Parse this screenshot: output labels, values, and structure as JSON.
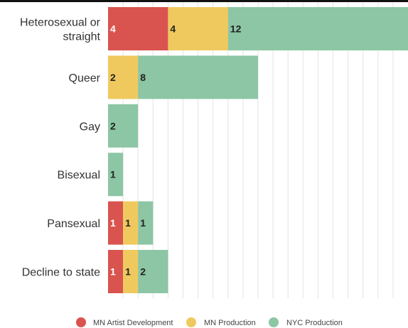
{
  "chart_data": {
    "type": "bar",
    "orientation": "horizontal",
    "stacked": true,
    "categories": [
      [
        "Heterosexual or",
        "straight"
      ],
      [
        "Queer"
      ],
      [
        "Gay"
      ],
      [
        "Bisexual"
      ],
      [
        "Pansexual"
      ],
      [
        "Decline to state"
      ]
    ],
    "series": [
      {
        "name": "MN Artist Development",
        "color": "#d9534f",
        "label_color": "#ffffff",
        "values": [
          4,
          0,
          0,
          0,
          1,
          1
        ]
      },
      {
        "name": "MN Production",
        "color": "#f0c95e",
        "label_color": "#222222",
        "values": [
          4,
          2,
          0,
          0,
          1,
          1
        ]
      },
      {
        "name": "NYC Production",
        "color": "#8cc6a4",
        "label_color": "#222222",
        "values": [
          12,
          8,
          2,
          1,
          1,
          2
        ]
      }
    ],
    "xlim": [
      0,
      20
    ],
    "grid": true,
    "legend_position": "bottom"
  }
}
